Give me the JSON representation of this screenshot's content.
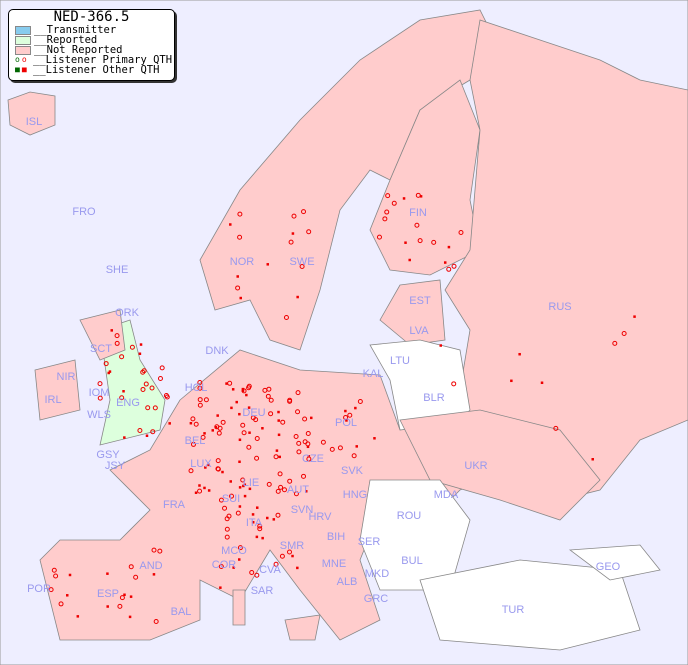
{
  "map": {
    "title": "NED-366.5",
    "legend": [
      {
        "label": "__Transmitter",
        "color": "#88ccee"
      },
      {
        "label": "__Reported",
        "color": "#ddffdd"
      },
      {
        "label": "__Not Reported",
        "color": "#ffcccc"
      },
      {
        "label": "__Listener Primary QTH",
        "marker": "circle",
        "colors": [
          "#006600",
          "#ee0000"
        ]
      },
      {
        "label": "__Listener Other QTH",
        "marker": "square",
        "colors": [
          "#006600",
          "#ee0000"
        ]
      }
    ],
    "colors": {
      "sea": "#eeeeff",
      "not_reported": "#ffcccc",
      "reported": "#ddffdd",
      "no_data": "#ffffff",
      "listener": "#ee0000",
      "label": "#9999ee"
    },
    "country_labels": [
      "ISL",
      "FRO",
      "SHE",
      "ORK",
      "NOR",
      "SWE",
      "FIN",
      "EST",
      "LVA",
      "LTU",
      "KAL",
      "RUS",
      "BLR",
      "DNK",
      "HOL",
      "DEU",
      "POL",
      "IRL",
      "IOM",
      "WLS",
      "ENG",
      "GSY",
      "JSY",
      "BEL",
      "LUX",
      "CZE",
      "SVK",
      "UKR",
      "FRA",
      "SUI",
      "LIE",
      "AUT",
      "HNG",
      "MDA",
      "ROU",
      "SVN",
      "HRV",
      "BIH",
      "SER",
      "ITA",
      "MCO",
      "COR",
      "SMR",
      "CVA",
      "MNE",
      "ALB",
      "MKD",
      "BUL",
      "GRC",
      "TUR",
      "GEO",
      "AND",
      "POR",
      "ESP",
      "BAL",
      "SAR",
      "SCT",
      "NIR"
    ]
  }
}
